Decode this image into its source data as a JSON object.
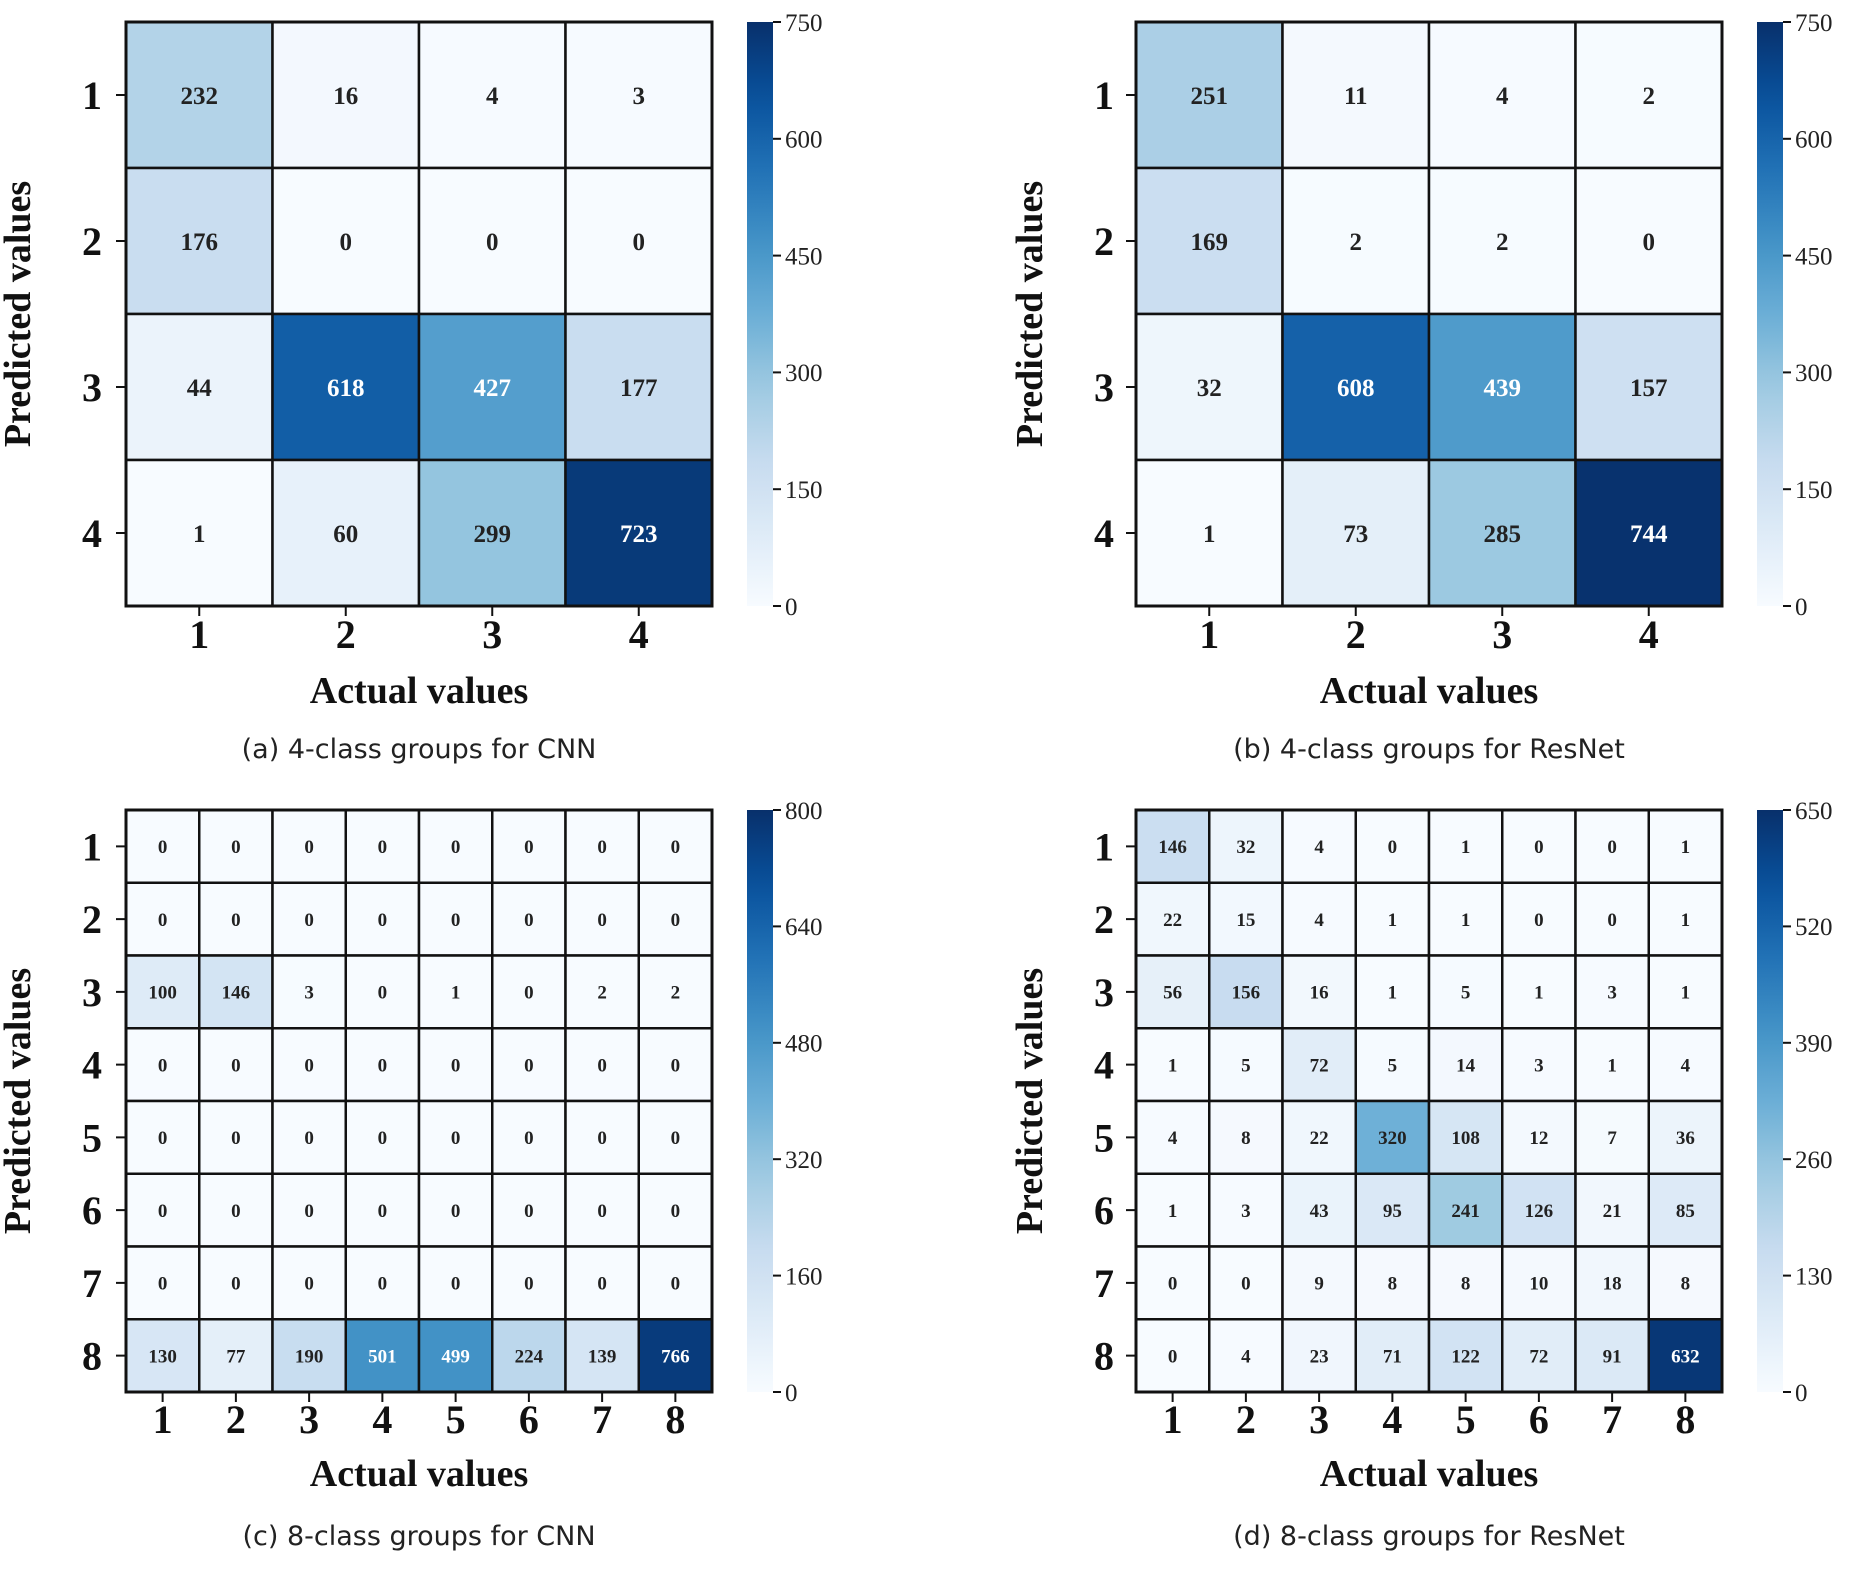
{
  "chart_data": [
    {
      "type": "heatmap",
      "caption": "(a) 4-class groups for CNN",
      "xlabel": "Actual values",
      "ylabel": "Predicted values",
      "x_ticks": [
        "1",
        "2",
        "3",
        "4"
      ],
      "y_ticks": [
        "1",
        "2",
        "3",
        "4"
      ],
      "matrix": [
        [
          232,
          16,
          4,
          3
        ],
        [
          176,
          0,
          0,
          0
        ],
        [
          44,
          618,
          427,
          177
        ],
        [
          1,
          60,
          299,
          723
        ]
      ],
      "colorbar": {
        "vmin": 0,
        "vmax": 750,
        "ticks": [
          0,
          150,
          300,
          450,
          600,
          750
        ]
      },
      "colormap": "Blues",
      "grid": true
    },
    {
      "type": "heatmap",
      "caption": "(b) 4-class groups for ResNet",
      "xlabel": "Actual values",
      "ylabel": "Predicted values",
      "x_ticks": [
        "1",
        "2",
        "3",
        "4"
      ],
      "y_ticks": [
        "1",
        "2",
        "3",
        "4"
      ],
      "matrix": [
        [
          251,
          11,
          4,
          2
        ],
        [
          169,
          2,
          2,
          0
        ],
        [
          32,
          608,
          439,
          157
        ],
        [
          1,
          73,
          285,
          744
        ]
      ],
      "colorbar": {
        "vmin": 0,
        "vmax": 750,
        "ticks": [
          0,
          150,
          300,
          450,
          600,
          750
        ]
      },
      "colormap": "Blues",
      "grid": true
    },
    {
      "type": "heatmap",
      "caption": "(c) 8-class groups for CNN",
      "xlabel": "Actual values",
      "ylabel": "Predicted values",
      "x_ticks": [
        "1",
        "2",
        "3",
        "4",
        "5",
        "6",
        "7",
        "8"
      ],
      "y_ticks": [
        "1",
        "2",
        "3",
        "4",
        "5",
        "6",
        "7",
        "8"
      ],
      "matrix": [
        [
          0,
          0,
          0,
          0,
          0,
          0,
          0,
          0
        ],
        [
          0,
          0,
          0,
          0,
          0,
          0,
          0,
          0
        ],
        [
          100,
          146,
          3,
          0,
          1,
          0,
          2,
          2
        ],
        [
          0,
          0,
          0,
          0,
          0,
          0,
          0,
          0
        ],
        [
          0,
          0,
          0,
          0,
          0,
          0,
          0,
          0
        ],
        [
          0,
          0,
          0,
          0,
          0,
          0,
          0,
          0
        ],
        [
          0,
          0,
          0,
          0,
          0,
          0,
          0,
          0
        ],
        [
          130,
          77,
          190,
          501,
          499,
          224,
          139,
          766
        ]
      ],
      "colorbar": {
        "vmin": 0,
        "vmax": 800,
        "ticks": [
          0,
          160,
          320,
          480,
          640,
          800
        ]
      },
      "colormap": "Blues",
      "grid": true
    },
    {
      "type": "heatmap",
      "caption": "(d) 8-class groups for ResNet",
      "xlabel": "Actual values",
      "ylabel": "Predicted values",
      "x_ticks": [
        "1",
        "2",
        "3",
        "4",
        "5",
        "6",
        "7",
        "8"
      ],
      "y_ticks": [
        "1",
        "2",
        "3",
        "4",
        "5",
        "6",
        "7",
        "8"
      ],
      "matrix": [
        [
          146,
          32,
          4,
          0,
          1,
          0,
          0,
          1
        ],
        [
          22,
          15,
          4,
          1,
          1,
          0,
          0,
          1
        ],
        [
          56,
          156,
          16,
          1,
          5,
          1,
          3,
          1
        ],
        [
          1,
          5,
          72,
          5,
          14,
          3,
          1,
          4
        ],
        [
          4,
          8,
          22,
          320,
          108,
          12,
          7,
          36
        ],
        [
          1,
          3,
          43,
          95,
          241,
          126,
          21,
          85
        ],
        [
          0,
          0,
          9,
          8,
          8,
          10,
          18,
          8
        ],
        [
          0,
          4,
          23,
          71,
          122,
          72,
          91,
          632
        ]
      ],
      "colorbar": {
        "vmin": 0,
        "vmax": 650,
        "ticks": [
          0,
          130,
          260,
          390,
          520,
          650
        ]
      },
      "colormap": "Blues",
      "grid": true
    }
  ]
}
